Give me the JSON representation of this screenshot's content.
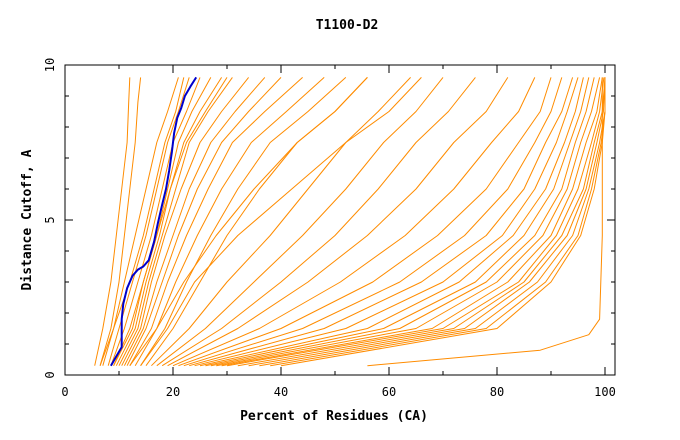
{
  "chart_data": {
    "type": "line",
    "title": "T1100-D2",
    "xlabel": "Percent of Residues (CA)",
    "ylabel": "Distance Cutoff, A",
    "xlim": [
      0,
      100
    ],
    "ylim": [
      0,
      10
    ],
    "x_ticks": [
      "0",
      "20",
      "40",
      "60",
      "80",
      "100"
    ],
    "y_ticks": [
      "0",
      "5",
      "10"
    ],
    "grid": false,
    "colors": {
      "others": "#ff8c00",
      "highlight": "#0000cc"
    },
    "highlight_series": {
      "x": [
        8.5,
        9.5,
        10.5,
        10.5,
        10.8,
        11.5,
        12.5,
        13.5,
        14.5,
        15.5,
        16.5,
        17.2,
        18.0,
        18.7,
        19.3,
        19.8,
        20.2,
        20.8,
        21.5,
        22.2,
        23.2,
        24.3
      ],
      "y": [
        0.3,
        0.6,
        0.9,
        1.8,
        2.3,
        2.8,
        3.2,
        3.4,
        3.5,
        3.7,
        4.3,
        4.9,
        5.5,
        6.0,
        6.6,
        7.2,
        7.8,
        8.3,
        8.6,
        9.0,
        9.3,
        9.6
      ]
    },
    "series": [
      {
        "x": [
          5.5,
          7,
          8.5,
          9.5,
          10.5,
          11.5,
          11.8,
          12.0
        ],
        "y": [
          0.3,
          1.5,
          3,
          4.5,
          6,
          7.5,
          8.8,
          9.6
        ]
      },
      {
        "x": [
          6.5,
          8.5,
          10,
          11,
          12,
          13,
          13.5,
          14
        ],
        "y": [
          0.3,
          1.5,
          3,
          4.5,
          6,
          7.5,
          8.8,
          9.6
        ]
      },
      {
        "x": [
          7,
          9,
          11,
          13,
          15,
          17,
          19,
          21
        ],
        "y": [
          0.3,
          1.5,
          3,
          4.5,
          6,
          7.5,
          8.5,
          9.6
        ]
      },
      {
        "x": [
          8,
          10,
          12.5,
          15,
          17,
          19,
          21,
          23
        ],
        "y": [
          0.3,
          1.5,
          3,
          4.5,
          6,
          7.5,
          8.5,
          9.6
        ]
      },
      {
        "x": [
          8.5,
          11,
          13.5,
          16,
          18,
          20,
          22.5,
          25
        ],
        "y": [
          0.3,
          1.5,
          3,
          4.5,
          6,
          7.5,
          8.5,
          9.6
        ]
      },
      {
        "x": [
          9,
          12,
          14.5,
          17,
          19,
          21,
          23.5,
          27
        ],
        "y": [
          0.3,
          1.5,
          3,
          4.5,
          6,
          7.5,
          8.5,
          9.6
        ]
      },
      {
        "x": [
          9.5,
          13,
          15,
          17.5,
          19.5,
          22,
          25,
          29
        ],
        "y": [
          0.3,
          1.5,
          3,
          4.5,
          6,
          7.5,
          8.5,
          9.6
        ]
      },
      {
        "x": [
          10,
          13.5,
          15.5,
          18,
          20.5,
          23,
          26.5,
          31
        ],
        "y": [
          0.3,
          1.5,
          3,
          4.5,
          6,
          7.5,
          8.5,
          9.6
        ]
      },
      {
        "x": [
          10.5,
          14,
          16,
          18.5,
          21.5,
          25,
          29,
          34
        ],
        "y": [
          0.3,
          1.5,
          3,
          4.5,
          6,
          7.5,
          8.5,
          9.6
        ]
      },
      {
        "x": [
          11,
          14.5,
          17,
          20,
          23,
          27,
          31.5,
          37
        ],
        "y": [
          0.3,
          1.5,
          3,
          4.5,
          6,
          7.5,
          8.5,
          9.6
        ]
      },
      {
        "x": [
          11.5,
          15,
          18,
          21,
          24.5,
          29,
          34,
          40
        ],
        "y": [
          0.3,
          1.5,
          3,
          4.5,
          6,
          7.5,
          8.5,
          9.6
        ]
      },
      {
        "x": [
          12,
          16,
          19,
          22.5,
          26.5,
          31,
          37,
          44
        ],
        "y": [
          0.3,
          1.5,
          3,
          4.5,
          6,
          7.5,
          8.5,
          9.6
        ]
      },
      {
        "x": [
          13,
          17,
          20.5,
          24.5,
          29,
          34.5,
          41,
          48
        ],
        "y": [
          0.3,
          1.5,
          3,
          4.5,
          6,
          7.5,
          8.5,
          9.6
        ]
      },
      {
        "x": [
          14,
          18.5,
          22.5,
          27,
          32,
          38,
          45,
          52
        ],
        "y": [
          0.3,
          1.5,
          3,
          4.5,
          6,
          7.5,
          8.5,
          9.6
        ]
      },
      {
        "x": [
          15,
          20,
          25,
          30,
          36,
          43,
          50,
          56
        ],
        "y": [
          0.3,
          1.5,
          3,
          4.5,
          6,
          7.5,
          8.5,
          9.6
        ]
      },
      {
        "x": [
          16,
          23,
          30,
          38,
          45,
          52,
          58,
          64
        ],
        "y": [
          0.3,
          1.5,
          3,
          4.5,
          6,
          7.5,
          8.5,
          9.6
        ]
      },
      {
        "x": [
          17,
          26,
          35,
          44,
          52,
          59,
          65,
          70
        ],
        "y": [
          0.3,
          1.5,
          3,
          4.5,
          6,
          7.5,
          8.5,
          9.6
        ]
      },
      {
        "x": [
          18,
          29,
          40,
          50,
          58,
          65,
          71,
          76
        ],
        "y": [
          0.3,
          1.5,
          3,
          4.5,
          6,
          7.5,
          8.5,
          9.6
        ]
      },
      {
        "x": [
          19,
          32,
          45,
          56,
          65,
          72,
          78,
          82
        ],
        "y": [
          0.3,
          1.5,
          3,
          4.5,
          6,
          7.5,
          8.5,
          9.6
        ]
      },
      {
        "x": [
          20,
          36,
          51,
          63,
          72,
          79,
          84,
          87
        ],
        "y": [
          0.3,
          1.5,
          3,
          4.5,
          6,
          7.5,
          8.5,
          9.6
        ]
      },
      {
        "x": [
          21,
          40,
          57,
          69,
          78,
          84,
          88,
          90
        ],
        "y": [
          0.3,
          1.5,
          3,
          4.5,
          6,
          7.5,
          8.5,
          9.6
        ]
      },
      {
        "x": [
          22,
          44,
          62,
          74,
          82,
          87,
          90,
          92
        ],
        "y": [
          0.3,
          1.5,
          3,
          4.5,
          6,
          7.5,
          8.5,
          9.6
        ]
      },
      {
        "x": [
          23,
          48,
          66,
          78,
          85,
          89,
          92,
          94
        ],
        "y": [
          0.3,
          1.5,
          3,
          4.5,
          6,
          7.5,
          8.5,
          9.6
        ]
      },
      {
        "x": [
          24,
          52,
          70,
          81,
          87,
          91,
          93,
          95
        ],
        "y": [
          0.3,
          1.5,
          3,
          4.5,
          6,
          7.5,
          8.5,
          9.6
        ]
      },
      {
        "x": [
          25,
          56,
          73,
          83,
          89,
          92.5,
          94.5,
          96
        ],
        "y": [
          0.3,
          1.5,
          3,
          4.5,
          6,
          7.5,
          8.5,
          9.6
        ]
      },
      {
        "x": [
          26,
          59,
          76,
          85,
          90.5,
          93.5,
          95.5,
          97
        ],
        "y": [
          0.3,
          1.5,
          3,
          4.5,
          6,
          7.5,
          8.5,
          9.6
        ]
      },
      {
        "x": [
          27,
          62,
          78,
          87,
          92,
          94.5,
          96.5,
          98
        ],
        "y": [
          0.3,
          1.5,
          3,
          4.5,
          6,
          7.5,
          8.5,
          9.6
        ]
      },
      {
        "x": [
          28,
          65,
          80,
          88.5,
          93,
          95.5,
          97.5,
          99
        ],
        "y": [
          0.3,
          1.5,
          3,
          4.5,
          6,
          7.5,
          8.5,
          9.6
        ]
      },
      {
        "x": [
          29,
          68,
          82,
          90,
          94,
          96.5,
          98.5,
          99.5
        ],
        "y": [
          0.3,
          1.5,
          3,
          4.5,
          6,
          7.5,
          8.5,
          9.6
        ]
      },
      {
        "x": [
          30,
          70,
          84,
          91,
          95,
          97.5,
          99,
          99.8
        ],
        "y": [
          0.3,
          1.5,
          3,
          4.5,
          6,
          7.5,
          8.5,
          9.6
        ]
      },
      {
        "x": [
          32,
          72,
          85,
          92,
          96,
          98,
          99.5,
          100
        ],
        "y": [
          0.3,
          1.5,
          3,
          4.5,
          6,
          7.5,
          8.5,
          9.6
        ]
      },
      {
        "x": [
          34,
          74,
          86,
          93,
          96.5,
          98.5,
          99.7,
          100
        ],
        "y": [
          0.3,
          1.5,
          3,
          4.5,
          6,
          7.5,
          8.5,
          9.6
        ]
      },
      {
        "x": [
          36,
          76,
          87.5,
          94,
          97,
          99,
          100,
          100
        ],
        "y": [
          0.3,
          1.5,
          3,
          4.5,
          6,
          7.5,
          8.5,
          9.6
        ]
      },
      {
        "x": [
          38,
          78,
          89,
          95,
          97.5,
          99.3,
          100,
          100
        ],
        "y": [
          0.3,
          1.5,
          3,
          4.5,
          6,
          7.5,
          8.5,
          9.6
        ]
      },
      {
        "x": [
          40,
          80,
          90,
          95.5,
          98,
          99.5,
          100,
          100
        ],
        "y": [
          0.3,
          1.5,
          3,
          4.5,
          6,
          7.5,
          8.5,
          9.6
        ]
      },
      {
        "x": [
          56,
          88,
          97,
          99,
          99.5,
          99.5,
          99.5,
          99.5
        ],
        "y": [
          0.3,
          0.8,
          1.3,
          1.8,
          4.5,
          6,
          8.5,
          9.6
        ]
      },
      {
        "x": [
          6.5,
          9,
          12,
          14.5,
          16.5,
          18.5,
          20.5,
          22
        ],
        "y": [
          0.3,
          1.5,
          3,
          4.5,
          6,
          7.5,
          8.5,
          9.6
        ]
      },
      {
        "x": [
          9,
          12.5,
          14.5,
          17,
          19.5,
          22.5,
          26,
          30
        ],
        "y": [
          0.3,
          1.5,
          3,
          4.5,
          6,
          7.5,
          8.5,
          9.6
        ]
      },
      {
        "x": [
          12,
          17,
          22,
          28,
          35,
          43,
          50,
          56
        ],
        "y": [
          0.3,
          1.5,
          3,
          4.5,
          6,
          7.5,
          8.5,
          9.6
        ]
      },
      {
        "x": [
          14,
          19,
          24,
          32,
          42,
          52,
          60,
          66
        ],
        "y": [
          0.3,
          1.5,
          3,
          4.5,
          6,
          7.5,
          8.5,
          9.6
        ]
      }
    ]
  }
}
